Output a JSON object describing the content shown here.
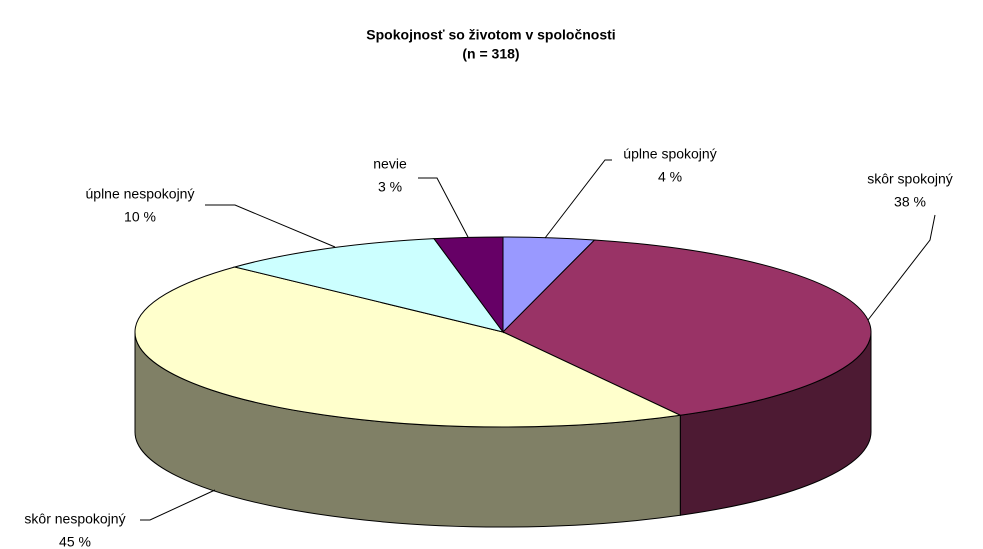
{
  "chart_data": {
    "type": "pie3d",
    "title": "Spokojnosť so životom v spoločnosti",
    "subtitle": "(n = 318)",
    "categories": [
      "úplne spokojný",
      "skôr spokojný",
      "skôr nespokojný",
      "úplne nespokojný",
      "nevie"
    ],
    "values": [
      4,
      38,
      45,
      10,
      3
    ],
    "value_labels": [
      "4 %",
      "38 %",
      "45 %",
      "10 %",
      "3 %"
    ],
    "colors": [
      "#9999ff",
      "#993366",
      "#ffffcc",
      "#ccffff",
      "#660066"
    ]
  }
}
